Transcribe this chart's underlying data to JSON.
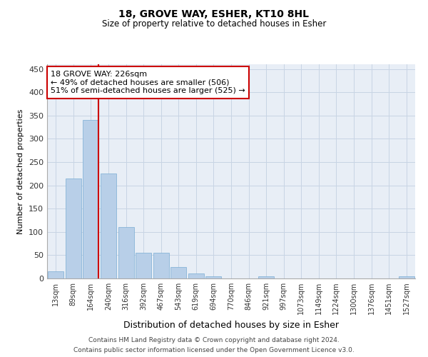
{
  "title1": "18, GROVE WAY, ESHER, KT10 8HL",
  "title2": "Size of property relative to detached houses in Esher",
  "xlabel": "Distribution of detached houses by size in Esher",
  "ylabel": "Number of detached properties",
  "categories": [
    "13sqm",
    "89sqm",
    "164sqm",
    "240sqm",
    "316sqm",
    "392sqm",
    "467sqm",
    "543sqm",
    "619sqm",
    "694sqm",
    "770sqm",
    "846sqm",
    "921sqm",
    "997sqm",
    "1073sqm",
    "1149sqm",
    "1224sqm",
    "1300sqm",
    "1376sqm",
    "1451sqm",
    "1527sqm"
  ],
  "values": [
    15,
    215,
    340,
    225,
    110,
    55,
    55,
    25,
    10,
    5,
    0,
    0,
    5,
    0,
    0,
    0,
    0,
    0,
    0,
    0,
    5
  ],
  "bar_color": "#b8cfe8",
  "bar_edge_color": "#7aadd4",
  "vline_color": "#cc0000",
  "annotation_text": "18 GROVE WAY: 226sqm\n← 49% of detached houses are smaller (506)\n51% of semi-detached houses are larger (525) →",
  "annotation_box_color": "#ffffff",
  "annotation_box_edge": "#cc0000",
  "grid_color": "#c8d4e4",
  "bg_color": "#e8eef6",
  "ylim": [
    0,
    460
  ],
  "yticks": [
    0,
    50,
    100,
    150,
    200,
    250,
    300,
    350,
    400,
    450
  ],
  "footnote1": "Contains HM Land Registry data © Crown copyright and database right 2024.",
  "footnote2": "Contains public sector information licensed under the Open Government Licence v3.0."
}
